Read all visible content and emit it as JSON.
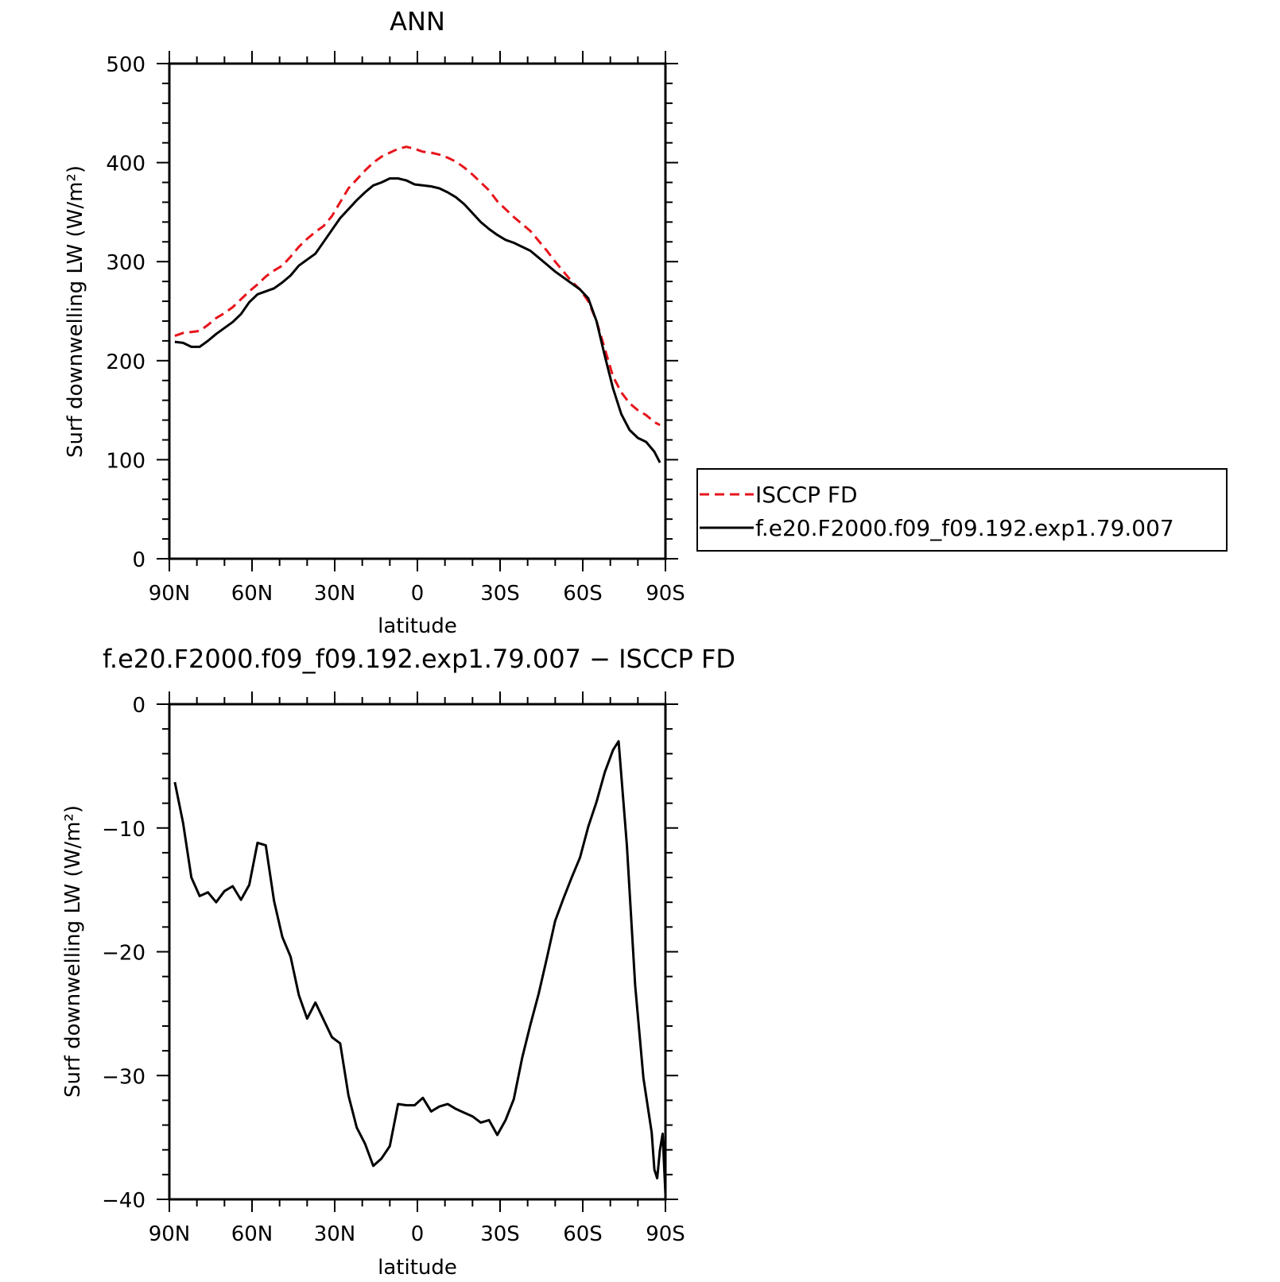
{
  "chart_data": [
    {
      "type": "line",
      "title": "ANN",
      "xlabel": "latitude",
      "ylabel": "Surf downwelling LW (W/m²)",
      "xlim": [
        90,
        -90
      ],
      "ylim": [
        0,
        500
      ],
      "x_tick_values": [
        90,
        60,
        30,
        0,
        -30,
        -60,
        -90
      ],
      "x_tick_labels": [
        "90N",
        "60N",
        "30N",
        "0",
        "30S",
        "60S",
        "90S"
      ],
      "y_tick_values": [
        0,
        100,
        200,
        300,
        400,
        500
      ],
      "y_tick_labels": [
        "0",
        "100",
        "200",
        "300",
        "400",
        "500"
      ],
      "legend_position": "right",
      "series": [
        {
          "name": "ISCCP FD",
          "color": "#e8141c",
          "dash": "dashed",
          "points": [
            [
              88,
              225
            ],
            [
              85,
              228
            ],
            [
              82,
              229
            ],
            [
              79,
              230
            ],
            [
              76,
              236
            ],
            [
              73,
              243
            ],
            [
              70,
              248
            ],
            [
              67,
              254
            ],
            [
              64,
              262
            ],
            [
              61,
              270
            ],
            [
              58,
              277
            ],
            [
              55,
              285
            ],
            [
              52,
              291
            ],
            [
              49,
              296
            ],
            [
              46,
              305
            ],
            [
              43,
              315
            ],
            [
              40,
              323
            ],
            [
              37,
              330
            ],
            [
              34,
              336
            ],
            [
              31,
              346
            ],
            [
              28,
              360
            ],
            [
              25,
              374
            ],
            [
              22,
              383
            ],
            [
              19,
              392
            ],
            [
              16,
              400
            ],
            [
              13,
              406
            ],
            [
              10,
              410
            ],
            [
              7,
              414
            ],
            [
              4,
              416
            ],
            [
              1,
              414
            ],
            [
              -2,
              411
            ],
            [
              -5,
              410
            ],
            [
              -8,
              408
            ],
            [
              -11,
              405
            ],
            [
              -14,
              401
            ],
            [
              -17,
              395
            ],
            [
              -20,
              388
            ],
            [
              -23,
              380
            ],
            [
              -26,
              372
            ],
            [
              -29,
              361
            ],
            [
              -32,
              353
            ],
            [
              -35,
              345
            ],
            [
              -38,
              338
            ],
            [
              -41,
              331
            ],
            [
              -44,
              321
            ],
            [
              -47,
              311
            ],
            [
              -50,
              300
            ],
            [
              -53,
              290
            ],
            [
              -56,
              280
            ],
            [
              -59,
              272
            ],
            [
              -62,
              260
            ],
            [
              -65,
              240
            ],
            [
              -68,
              212
            ],
            [
              -71,
              184
            ],
            [
              -74,
              168
            ],
            [
              -77,
              157
            ],
            [
              -80,
              150
            ],
            [
              -83,
              145
            ],
            [
              -86,
              138
            ],
            [
              -88,
              135
            ]
          ]
        },
        {
          "name": "f.e20.F2000.f09_f09.192.exp1.79.007",
          "color": "#000000",
          "dash": "solid",
          "points": [
            [
              88,
              219
            ],
            [
              85,
              218
            ],
            [
              82,
              214
            ],
            [
              79,
              214
            ],
            [
              76,
              220
            ],
            [
              73,
              227
            ],
            [
              70,
              233
            ],
            [
              67,
              239
            ],
            [
              64,
              247
            ],
            [
              61,
              259
            ],
            [
              58,
              267
            ],
            [
              55,
              270
            ],
            [
              52,
              273
            ],
            [
              49,
              279
            ],
            [
              46,
              286
            ],
            [
              43,
              296
            ],
            [
              40,
              302
            ],
            [
              37,
              308
            ],
            [
              34,
              320
            ],
            [
              31,
              332
            ],
            [
              28,
              344
            ],
            [
              25,
              353
            ],
            [
              22,
              362
            ],
            [
              19,
              370
            ],
            [
              16,
              377
            ],
            [
              13,
              380
            ],
            [
              10,
              384
            ],
            [
              7,
              384
            ],
            [
              4,
              382
            ],
            [
              1,
              378
            ],
            [
              -2,
              377
            ],
            [
              -5,
              376
            ],
            [
              -8,
              374
            ],
            [
              -11,
              370
            ],
            [
              -14,
              365
            ],
            [
              -17,
              358
            ],
            [
              -20,
              349
            ],
            [
              -23,
              340
            ],
            [
              -26,
              333
            ],
            [
              -29,
              327
            ],
            [
              -32,
              322
            ],
            [
              -35,
              319
            ],
            [
              -38,
              315
            ],
            [
              -41,
              311
            ],
            [
              -44,
              304
            ],
            [
              -47,
              297
            ],
            [
              -50,
              290
            ],
            [
              -53,
              284
            ],
            [
              -56,
              278
            ],
            [
              -59,
              272
            ],
            [
              -62,
              263
            ],
            [
              -65,
              240
            ],
            [
              -68,
              205
            ],
            [
              -71,
              172
            ],
            [
              -74,
              146
            ],
            [
              -77,
              130
            ],
            [
              -80,
              122
            ],
            [
              -83,
              118
            ],
            [
              -86,
              108
            ],
            [
              -88,
              97
            ]
          ]
        }
      ]
    },
    {
      "type": "line",
      "title": "f.e20.F2000.f09_f09.192.exp1.79.007 − ISCCP FD",
      "xlabel": "latitude",
      "ylabel": "Surf downwelling LW (W/m²)",
      "xlim": [
        90,
        -90
      ],
      "ylim": [
        -40,
        0
      ],
      "x_tick_values": [
        90,
        60,
        30,
        0,
        -30,
        -60,
        -90
      ],
      "x_tick_labels": [
        "90N",
        "60N",
        "30N",
        "0",
        "30S",
        "60S",
        "90S"
      ],
      "y_tick_values": [
        -40,
        -30,
        -20,
        -10,
        0
      ],
      "y_tick_labels": [
        "−40",
        "−30",
        "−20",
        "−10",
        "0"
      ],
      "series": [
        {
          "name": "",
          "color": "#000000",
          "dash": "solid",
          "points": [
            [
              88,
              -6.3
            ],
            [
              85,
              -9.6
            ],
            [
              82,
              -14.0
            ],
            [
              79,
              -15.5
            ],
            [
              76,
              -15.2
            ],
            [
              73,
              -16.0
            ],
            [
              70,
              -15.1
            ],
            [
              67,
              -14.7
            ],
            [
              64,
              -15.8
            ],
            [
              61,
              -14.6
            ],
            [
              58,
              -11.2
            ],
            [
              55,
              -11.4
            ],
            [
              52,
              -15.9
            ],
            [
              49,
              -18.8
            ],
            [
              46,
              -20.4
            ],
            [
              43,
              -23.5
            ],
            [
              40,
              -25.4
            ],
            [
              37,
              -24.1
            ],
            [
              34,
              -25.5
            ],
            [
              31,
              -26.9
            ],
            [
              28,
              -27.4
            ],
            [
              25,
              -31.6
            ],
            [
              22,
              -34.2
            ],
            [
              19,
              -35.5
            ],
            [
              16,
              -37.3
            ],
            [
              13,
              -36.7
            ],
            [
              10,
              -35.7
            ],
            [
              7,
              -32.3
            ],
            [
              4,
              -32.4
            ],
            [
              1,
              -32.4
            ],
            [
              -2,
              -31.8
            ],
            [
              -5,
              -32.9
            ],
            [
              -8,
              -32.5
            ],
            [
              -11,
              -32.3
            ],
            [
              -14,
              -32.7
            ],
            [
              -17,
              -33.0
            ],
            [
              -20,
              -33.3
            ],
            [
              -23,
              -33.8
            ],
            [
              -26,
              -33.6
            ],
            [
              -29,
              -34.8
            ],
            [
              -32,
              -33.6
            ],
            [
              -35,
              -31.9
            ],
            [
              -38,
              -28.6
            ],
            [
              -41,
              -25.9
            ],
            [
              -44,
              -23.4
            ],
            [
              -47,
              -20.5
            ],
            [
              -50,
              -17.5
            ],
            [
              -53,
              -15.7
            ],
            [
              -56,
              -14.0
            ],
            [
              -59,
              -12.4
            ],
            [
              -62,
              -9.9
            ],
            [
              -65,
              -7.9
            ],
            [
              -68,
              -5.5
            ],
            [
              -71,
              -3.7
            ],
            [
              -73,
              -3.0
            ],
            [
              -76,
              -11.4
            ],
            [
              -79,
              -22.7
            ],
            [
              -82,
              -30.2
            ],
            [
              -85,
              -34.6
            ],
            [
              -86,
              -37.6
            ],
            [
              -87,
              -38.3
            ],
            [
              -88,
              -36.0
            ],
            [
              -89,
              -34.7
            ],
            [
              -90,
              -39.6
            ]
          ]
        }
      ]
    }
  ]
}
